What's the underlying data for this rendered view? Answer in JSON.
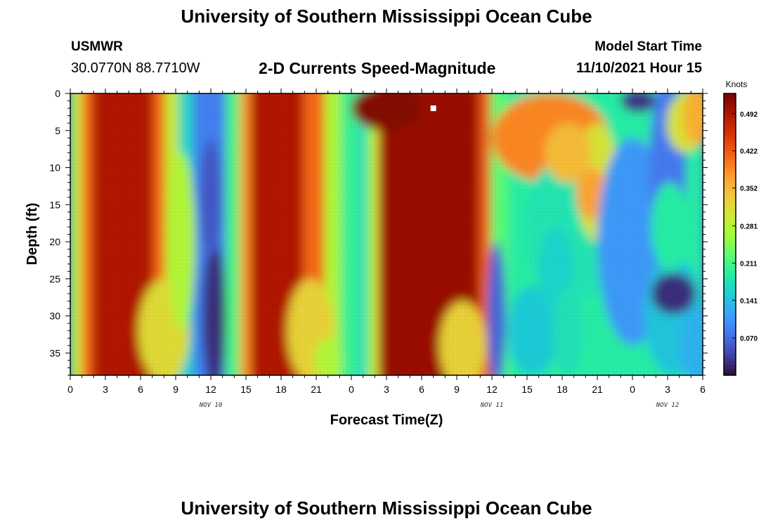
{
  "header": {
    "title": "University of Southern Mississippi Ocean Cube",
    "station": "USMWR",
    "coordinates": "30.0770N  88.7710W",
    "subtitle": "2-D Currents Speed-Magnitude",
    "model_start_label": "Model Start Time",
    "model_start_value": "11/10/2021 Hour 15"
  },
  "footer": {
    "title": "University of Southern Mississippi Ocean Cube"
  },
  "chart_data": {
    "type": "heatmap",
    "xlabel": "Forecast Time(Z)",
    "ylabel": "Depth (ft)",
    "x_range_hours": [
      0,
      54
    ],
    "y_range": [
      0,
      38
    ],
    "y_inverted": true,
    "x_ticks": [
      "0",
      "3",
      "6",
      "9",
      "12",
      "15",
      "18",
      "21",
      "0",
      "3",
      "6",
      "9",
      "12",
      "15",
      "18",
      "21",
      "0",
      "3",
      "6"
    ],
    "y_ticks": [
      0,
      5,
      10,
      15,
      20,
      25,
      30,
      35
    ],
    "day_labels": [
      {
        "label": "NOV 10",
        "hour": 12
      },
      {
        "label": "NOV 11",
        "hour": 36
      },
      {
        "label": "NOV 12",
        "hour": 51
      }
    ],
    "colorbar": {
      "unit": "Knots",
      "range": [
        0.0,
        0.53
      ],
      "ticks": [
        "0.492",
        "0.422",
        "0.352",
        "0.281",
        "0.211",
        "0.141",
        "0.070"
      ],
      "tick_values": [
        0.492,
        0.422,
        0.352,
        0.281,
        0.211,
        0.141,
        0.07
      ]
    },
    "marker": {
      "hour": 31,
      "depth": 2
    },
    "colors": {
      "scale": [
        "#30123b",
        "#4145ab",
        "#4675ed",
        "#39a2fc",
        "#1bcfd4",
        "#24eca6",
        "#61fc6c",
        "#a4fc3b",
        "#d1e834",
        "#f3c63a",
        "#fe9b2d",
        "#f36315",
        "#d93806",
        "#b11901",
        "#7a0402"
      ],
      "marker": "#ffffff"
    }
  }
}
